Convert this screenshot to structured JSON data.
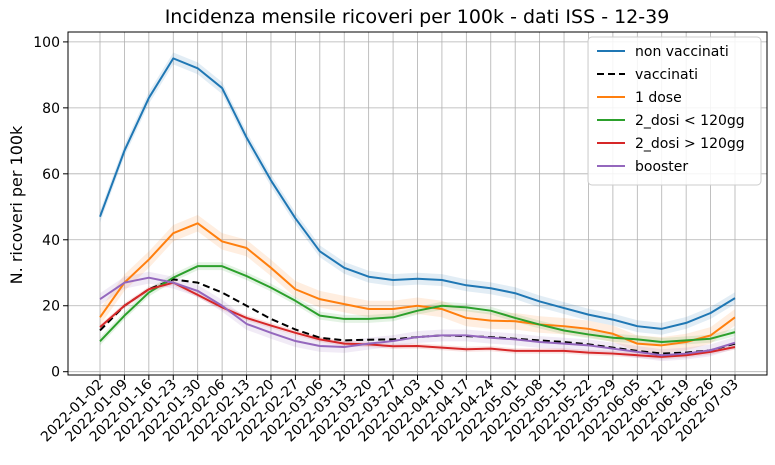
{
  "chart_data": {
    "type": "line",
    "title": "Incidenza mensile ricoveri per 100k - dati ISS - 12-39",
    "xlabel": "",
    "ylabel": "N. ricoveri per 100k",
    "ylim": [
      -1,
      103
    ],
    "yticks": [
      0,
      20,
      40,
      60,
      80,
      100
    ],
    "grid": true,
    "legend_position": "top-right",
    "x": [
      "2022-01-02",
      "2022-01-09",
      "2022-01-16",
      "2022-01-23",
      "2022-01-30",
      "2022-02-06",
      "2022-02-13",
      "2022-02-20",
      "2022-02-27",
      "2022-03-06",
      "2022-03-13",
      "2022-03-20",
      "2022-03-27",
      "2022-04-03",
      "2022-04-10",
      "2022-04-17",
      "2022-04-24",
      "2022-05-01",
      "2022-05-08",
      "2022-05-15",
      "2022-05-22",
      "2022-05-29",
      "2022-06-05",
      "2022-06-12",
      "2022-06-19",
      "2022-06-26",
      "2022-07-03"
    ],
    "series": [
      {
        "name": "non vaccinati",
        "color": "#1f77b4",
        "dash": false,
        "band": 1.8,
        "values": [
          47,
          67,
          83,
          95,
          92,
          86,
          71,
          58,
          46.5,
          36.5,
          31.5,
          28.8,
          27.8,
          28.2,
          27.8,
          26.2,
          25.3,
          23.8,
          21.3,
          19.3,
          17.3,
          15.8,
          13.8,
          13.0,
          14.8,
          17.8,
          22.3
        ]
      },
      {
        "name": "vaccinati",
        "color": "#000000",
        "dash": true,
        "band": 0,
        "values": [
          12.5,
          20,
          25,
          28,
          27,
          24,
          20,
          16,
          12.8,
          10.3,
          9.5,
          9.7,
          9.8,
          10.5,
          11,
          10.8,
          10.5,
          10,
          9.5,
          9,
          8.3,
          7.3,
          6.3,
          5.5,
          5.8,
          6.5,
          8.5
        ]
      },
      {
        "name": "1 dose",
        "color": "#ff7f0e",
        "dash": false,
        "band": 2.5,
        "values": [
          16.5,
          27,
          34,
          42,
          45,
          39.5,
          37.5,
          31.5,
          25,
          22,
          20.5,
          19,
          19,
          20,
          19,
          16.3,
          15.5,
          15.3,
          14.3,
          13.8,
          13,
          11.5,
          8.5,
          8.0,
          9.0,
          11.0,
          16.5
        ]
      },
      {
        "name": "2_dosi < 120gg",
        "color": "#2ca02c",
        "dash": false,
        "band": 1.2,
        "values": [
          9.2,
          17,
          24,
          28.5,
          32,
          32,
          29,
          25.5,
          21.5,
          17,
          16,
          16,
          16.5,
          18.5,
          20,
          19.5,
          18.5,
          16.3,
          14.3,
          12.5,
          11.3,
          10.3,
          9.8,
          9.0,
          9.5,
          10.0,
          12.0
        ]
      },
      {
        "name": "2_dosi > 120gg",
        "color": "#d62728",
        "dash": false,
        "band": 0.8,
        "values": [
          13.5,
          20,
          25,
          27,
          23.3,
          19.5,
          16.3,
          14,
          11.8,
          9.8,
          8.5,
          8.3,
          7.7,
          7.8,
          7.3,
          6.8,
          7.0,
          6.3,
          6.3,
          6.3,
          5.8,
          5.5,
          5.0,
          4.5,
          5.0,
          6.0,
          7.5
        ]
      },
      {
        "name": "booster",
        "color": "#9467bd",
        "dash": false,
        "band": 1.8,
        "values": [
          22,
          27,
          28.5,
          27,
          24.5,
          20,
          14.5,
          11.8,
          9.3,
          7.8,
          7.5,
          8.5,
          9.3,
          10.5,
          11,
          11,
          10.3,
          9.8,
          9.0,
          8.5,
          8.0,
          7.0,
          6.0,
          5.0,
          5.5,
          6.5,
          8.8
        ]
      }
    ]
  }
}
